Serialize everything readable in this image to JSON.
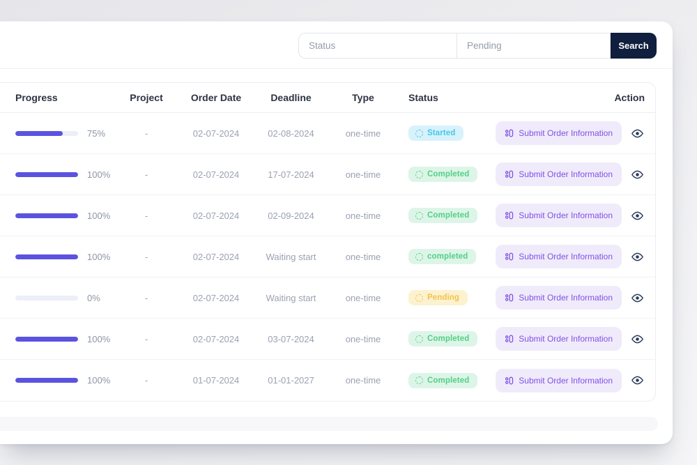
{
  "search": {
    "status_value": "Status",
    "keyword_value": "Pending",
    "button_label": "Search"
  },
  "table": {
    "columns": [
      "Progress",
      "Project",
      "Order Date",
      "Deadline",
      "Type",
      "Status",
      "Action"
    ],
    "action_button_label": "Submit Order Information",
    "icons": [
      "clipboard-list-icon",
      "spinner-icon",
      "eye-icon"
    ],
    "rows": [
      {
        "progress": 75,
        "progress_label": "75%",
        "project": "-",
        "order_date": "02-07-2024",
        "deadline": "02-08-2024",
        "type": "one-time",
        "status": {
          "label": "Started",
          "kind": "started"
        }
      },
      {
        "progress": 100,
        "progress_label": "100%",
        "project": "-",
        "order_date": "02-07-2024",
        "deadline": "17-07-2024",
        "type": "one-time",
        "status": {
          "label": "Completed",
          "kind": "completed"
        }
      },
      {
        "progress": 100,
        "progress_label": "100%",
        "project": "-",
        "order_date": "02-07-2024",
        "deadline": "02-09-2024",
        "type": "one-time",
        "status": {
          "label": "Completed",
          "kind": "completed"
        }
      },
      {
        "progress": 100,
        "progress_label": "100%",
        "project": "-",
        "order_date": "02-07-2024",
        "deadline": "Waiting start",
        "type": "one-time",
        "status": {
          "label": "completed",
          "kind": "completed"
        }
      },
      {
        "progress": 0,
        "progress_label": "0%",
        "project": "-",
        "order_date": "02-07-2024",
        "deadline": "Waiting start",
        "type": "one-time",
        "status": {
          "label": "Pending",
          "kind": "pending"
        }
      },
      {
        "progress": 100,
        "progress_label": "100%",
        "project": "-",
        "order_date": "02-07-2024",
        "deadline": "03-07-2024",
        "type": "one-time",
        "status": {
          "label": "Completed",
          "kind": "completed"
        }
      },
      {
        "progress": 100,
        "progress_label": "100%",
        "project": "-",
        "order_date": "01-07-2024",
        "deadline": "01-01-2027",
        "type": "one-time",
        "status": {
          "label": "Completed",
          "kind": "completed"
        }
      }
    ]
  },
  "colors": {
    "accent": "#5b53e0",
    "accent-track": "#eceef8",
    "started-bg": "#d8f2fb",
    "started-text": "#45c6ea",
    "completed-bg": "#ddf5e8",
    "completed-text": "#53cf85",
    "pending-bg": "#fdf2cf",
    "pending-text": "#f1c24d",
    "action-bg": "#f0ebfa",
    "action-text": "#8050e8",
    "search-btn-bg": "#0f1f3d",
    "search-btn-text": "#ffffff"
  }
}
